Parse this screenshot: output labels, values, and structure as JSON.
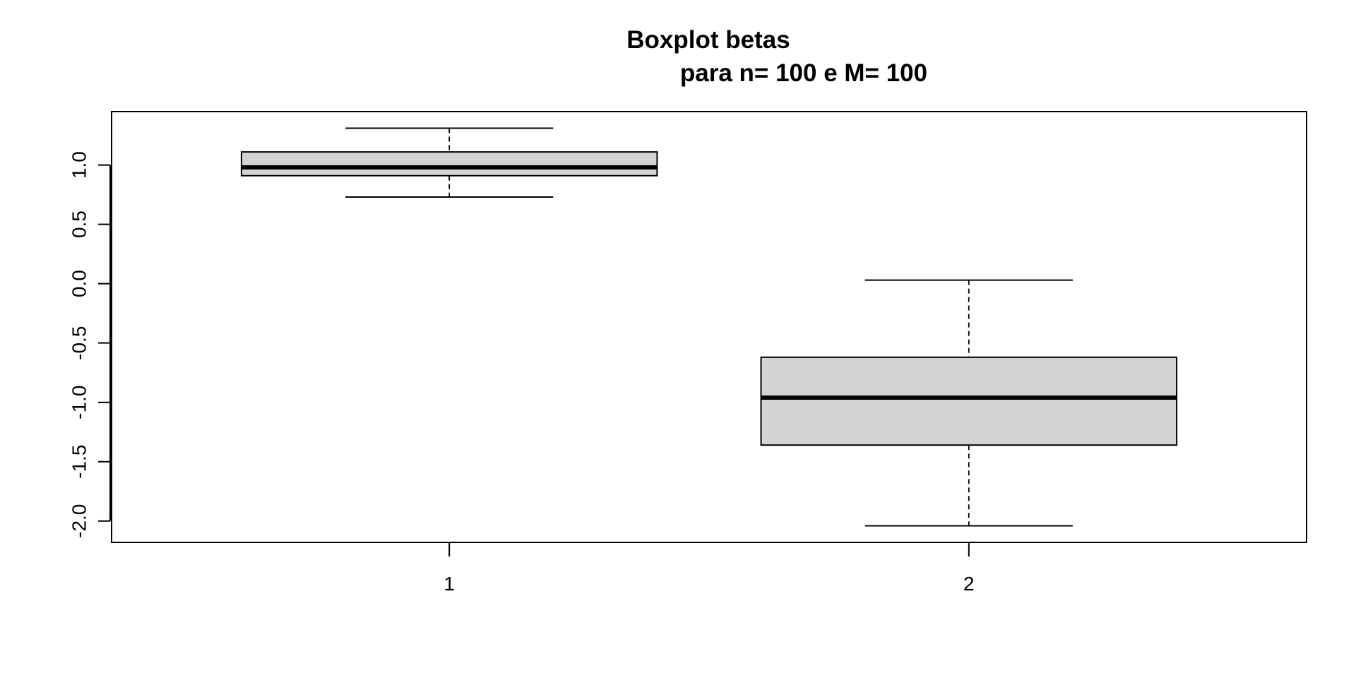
{
  "chart_data": {
    "type": "boxplot",
    "title": "Boxplot betas",
    "subtitle": "para n= 100 e M= 100",
    "xlabel": "",
    "ylabel": "",
    "ylim": [
      -2.18,
      1.45
    ],
    "y_ticks": [
      -2.0,
      -1.5,
      -1.0,
      -0.5,
      0.0,
      0.5,
      1.0
    ],
    "y_tick_labels": [
      "-2.0",
      "-1.5",
      "-1.0",
      "-0.5",
      "0.0",
      "0.5",
      "1.0"
    ],
    "categories": [
      "1",
      "2"
    ],
    "boxes": [
      {
        "category": "1",
        "whisker_low": 0.73,
        "q1": 0.91,
        "median": 0.98,
        "q3": 1.11,
        "whisker_high": 1.31
      },
      {
        "category": "2",
        "whisker_low": -2.04,
        "q1": -1.36,
        "median": -0.96,
        "q3": -0.62,
        "whisker_high": 0.03
      }
    ],
    "grid": false,
    "legend": "none",
    "box_fill": "#d3d3d3",
    "line_color": "#000000"
  }
}
